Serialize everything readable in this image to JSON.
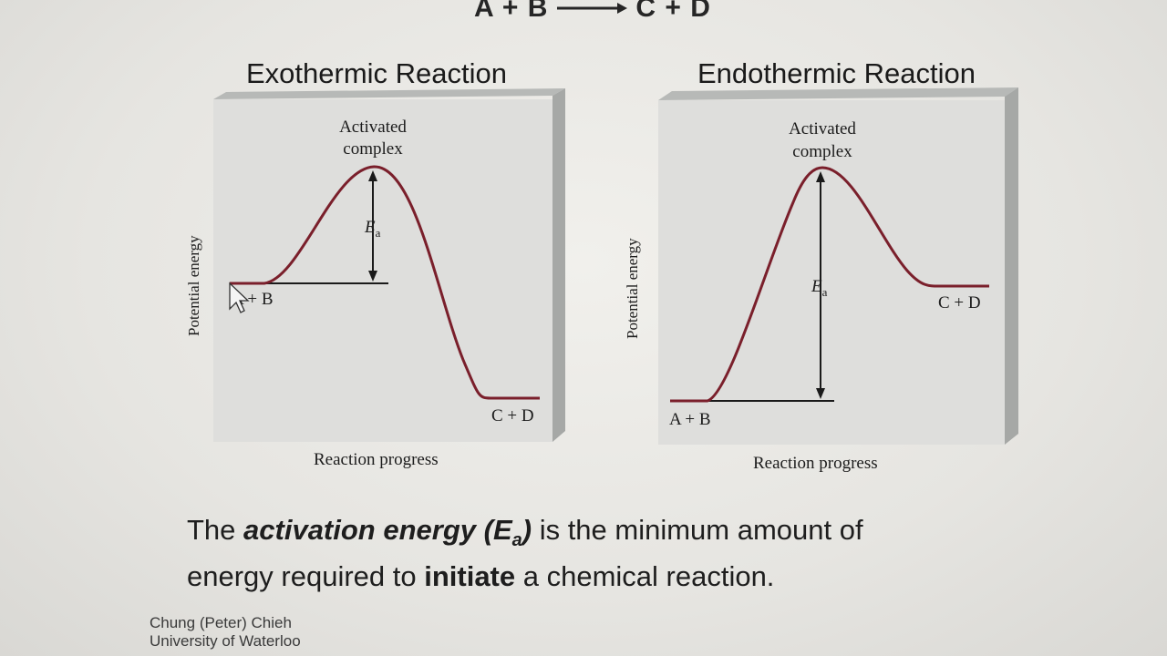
{
  "equation": {
    "left": "A + B",
    "right": "C + D"
  },
  "diagrams": [
    {
      "title": "Exothermic Reaction",
      "peak_label_line1": "Activated",
      "peak_label_line2": "complex",
      "ea_label": "E",
      "ea_sub": "a",
      "reactants_label": "A + B",
      "products_label": "C + D",
      "y_axis_label": "Potential energy",
      "x_axis_label": "Reaction progress"
    },
    {
      "title": "Endothermic Reaction",
      "peak_label_line1": "Activated",
      "peak_label_line2": "complex",
      "ea_label": "E",
      "ea_sub": "a",
      "reactants_label": "A + B",
      "products_label": "C + D",
      "y_axis_label": "Potential energy",
      "x_axis_label": "Reaction progress"
    }
  ],
  "caption": {
    "part1": "The ",
    "bold_italic": "activation energy (E",
    "sub": "a",
    "bold_italic_end": ")",
    "part2": " is the minimum amount of",
    "line2_part1": "energy required to ",
    "line2_bold": "initiate",
    "line2_part2": " a chemical reaction."
  },
  "credit": {
    "line1": "Chung (Peter) Chieh",
    "line2": "University of Waterloo"
  },
  "colors": {
    "curve": "#7a1f2b",
    "panel_front": "#dcdcda",
    "panel_side": "#a9aba9"
  }
}
